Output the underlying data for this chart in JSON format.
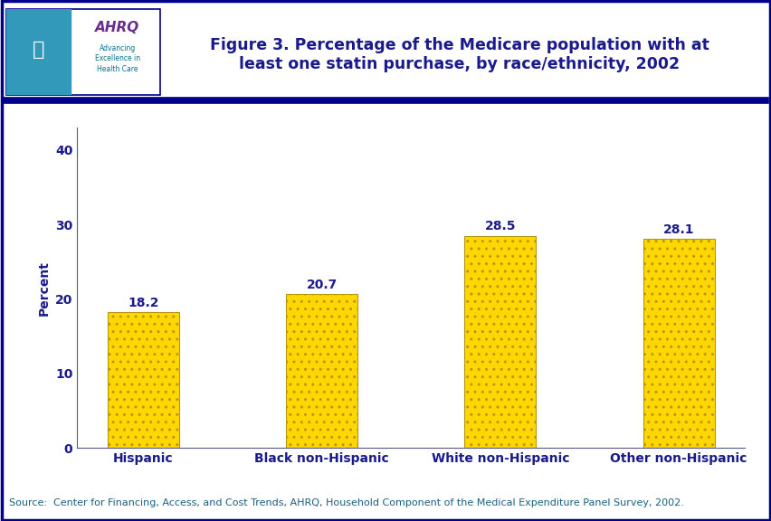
{
  "categories": [
    "Hispanic",
    "Black non-Hispanic",
    "White non-Hispanic",
    "Other non-Hispanic"
  ],
  "values": [
    18.2,
    20.7,
    28.5,
    28.1
  ],
  "bar_color": "#FFD700",
  "bar_edgecolor": "#B8960C",
  "title_line1": "Figure 3. Percentage of the Medicare population with at",
  "title_line2": "least one statin purchase, by race/ethnicity, 2002",
  "title_color": "#1A1A8C",
  "ylabel": "Percent",
  "ylabel_color": "#1A1A8C",
  "yticks": [
    0,
    10,
    20,
    30,
    40
  ],
  "ylim": [
    0,
    43
  ],
  "value_labels": [
    "18.2",
    "20.7",
    "28.5",
    "28.1"
  ],
  "value_label_color": "#1A1A8C",
  "source_text": "Source:  Center for Financing, Access, and Cost Trends, AHRQ, Household Component of the Medical Expenditure Panel Survey, 2002.",
  "source_color": "#1A6080",
  "background_color": "#FFFFFF",
  "plot_bg_color": "#FFFFFF",
  "outer_border_color": "#00008B",
  "header_line_color": "#00008B",
  "tick_label_color": "#1A1A8C",
  "axis_color": "#5A5A8C",
  "title_fontsize": 12.5,
  "label_fontsize": 10,
  "tick_fontsize": 10,
  "source_fontsize": 8,
  "value_fontsize": 10,
  "logo_bg_teal": "#3399BB",
  "logo_box_bg": "#F0F8FF",
  "ahrq_purple": "#6B2D8B",
  "ahrq_teal": "#007090"
}
